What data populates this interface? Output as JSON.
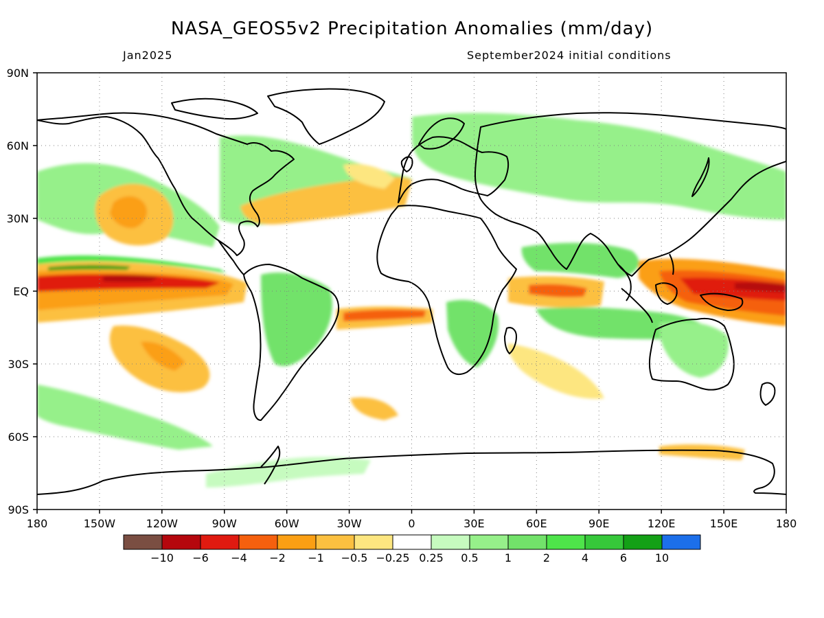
{
  "header": {
    "title": "NASA_GEOS5v2 Precipitation Anomalies (mm/day)",
    "valid_time": "Jan2025",
    "init_conditions": "September2024 initial conditions"
  },
  "axes": {
    "lon_ticks": [
      "180",
      "150W",
      "120W",
      "90W",
      "60W",
      "30W",
      "0",
      "30E",
      "60E",
      "90E",
      "120E",
      "150E",
      "180"
    ],
    "lat_ticks": [
      "90N",
      "60N",
      "30N",
      "EQ",
      "30S",
      "60S",
      "90S"
    ],
    "lon_values": [
      -180,
      -150,
      -120,
      -90,
      -60,
      -30,
      0,
      30,
      60,
      90,
      120,
      150,
      180
    ],
    "lat_values": [
      90,
      60,
      30,
      0,
      -30,
      -60,
      -90
    ],
    "gridlines": "dotted"
  },
  "colorbar": {
    "colors": [
      "#7a4e42",
      "#b5070d",
      "#e01a10",
      "#f5600e",
      "#fb9f13",
      "#fcc040",
      "#fde680",
      "#ffffff",
      "#c6fbbf",
      "#96f08a",
      "#72e26a",
      "#4ee44a",
      "#36c83a",
      "#13a016",
      "#1c6fea"
    ],
    "labels": [
      "−10",
      "−6",
      "−4",
      "−2",
      "−1",
      "−0.5",
      "−0.25",
      "0.25",
      "0.5",
      "1",
      "2",
      "4",
      "6",
      "10"
    ]
  },
  "legend_colors": {
    "very_dry": "#b5070d",
    "dry": "#f5600e",
    "mild_dry": "#fcc040",
    "mild_wet": "#96f08a",
    "wet": "#4ee44a",
    "very_wet": "#13a016"
  }
}
